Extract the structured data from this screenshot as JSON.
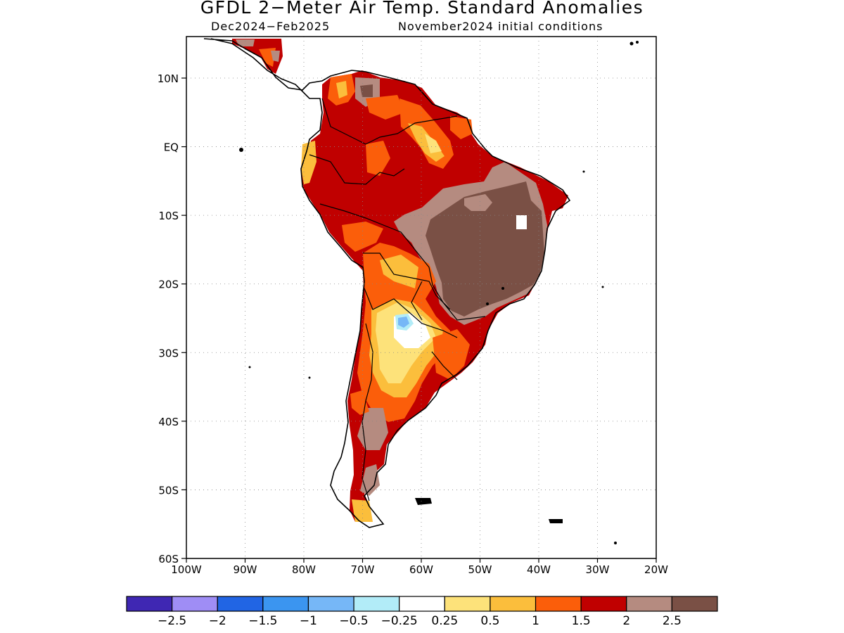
{
  "title": "GFDL 2−Meter Air Temp. Standard Anomalies",
  "subtitle_left": "Dec2024−Feb2025",
  "subtitle_right": "November2024 initial conditions",
  "map": {
    "lon_range": [
      -100,
      -20
    ],
    "lat_range": [
      -60,
      6
    ],
    "lon_ticks": [
      "100W",
      "90W",
      "80W",
      "70W",
      "60W",
      "50W",
      "40W",
      "30W",
      "20W"
    ],
    "lat_ticks": [
      "10N",
      "EQ",
      "10S",
      "20S",
      "30S",
      "40S",
      "50S",
      "60S"
    ],
    "grid": "dotted"
  },
  "colorbar": {
    "colors": [
      "#3f27b3",
      "#9f8df5",
      "#2165e4",
      "#3b95f0",
      "#76b7f7",
      "#b2ecf8",
      "#ffffff",
      "#fde27a",
      "#fbbe3c",
      "#fb5e0a",
      "#c00000",
      "#b58b80",
      "#7a5045"
    ],
    "labels": [
      "−2.5",
      "−2",
      "−1.5",
      "−1",
      "−0.5",
      "−0.25",
      "0.25",
      "0.5",
      "1",
      "1.5",
      "2",
      "2.5"
    ]
  },
  "colors": {
    "brown_dark": "#7a5045",
    "brown_light": "#b58b80",
    "red": "#c00000",
    "orange": "#fb5e0a",
    "orange_light": "#fbbe3c",
    "yellow": "#fde27a",
    "blue_light": "#76b7f7",
    "cyan": "#b2ecf8"
  }
}
